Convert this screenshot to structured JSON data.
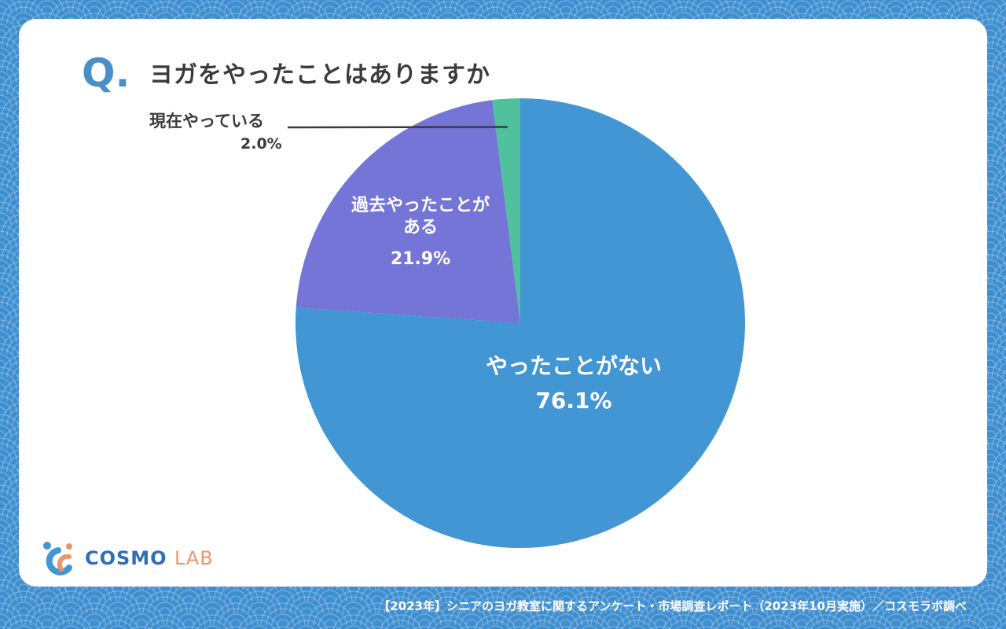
{
  "question": {
    "mark": "Q.",
    "title": "ヨガをやったことはありますか"
  },
  "chart_data": {
    "type": "pie",
    "categories": [
      "やったことがない",
      "過去やったことがある",
      "現在やっている"
    ],
    "values": [
      76.1,
      21.9,
      2.0
    ],
    "value_labels": [
      "76.1%",
      "21.9%",
      "2.0%"
    ],
    "colors": [
      "#4196d3",
      "#7475d7",
      "#4fc29d"
    ],
    "title": "ヨガをやったことはありますか"
  },
  "labels": {
    "never_name": "やったことがない",
    "never_value": "76.1%",
    "past_name_line1": "過去やったことが",
    "past_name_line2": "ある",
    "past_value": "21.9%",
    "current_name": "現在やっている",
    "current_value": "2.0%"
  },
  "logo": {
    "brand": "COSMO",
    "brand_suffix": "LAB"
  },
  "footer": {
    "source": "【2023年】シニアのヨガ教室に関するアンケート・市場調査レポート（2023年10月実施）／コスモラボ調べ"
  },
  "colors": {
    "background": "#3f8fd0",
    "card": "#ffffff",
    "title_text": "#3d3a3a",
    "q_mark": "#4a90c8"
  }
}
